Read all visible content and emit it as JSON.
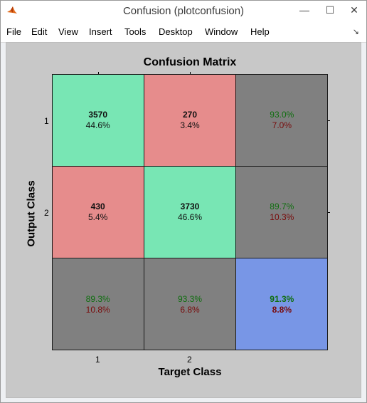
{
  "window": {
    "title": "Confusion (plotconfusion)",
    "icon": "matlab-icon",
    "controls": {
      "minimize": "—",
      "maximize": "☐",
      "close": "✕"
    }
  },
  "menubar": {
    "items": [
      "File",
      "Edit",
      "View",
      "Insert",
      "Tools",
      "Desktop",
      "Window",
      "Help"
    ],
    "dock_icon": "↘"
  },
  "plot": {
    "title": "Confusion Matrix",
    "xlabel": "Target Class",
    "ylabel": "Output Class",
    "xticks": [
      "1",
      "2"
    ],
    "yticks": [
      "1",
      "2"
    ]
  },
  "cells": [
    {
      "line1": "3570",
      "line2": "44.6%",
      "bg": "#78e6b4",
      "c1": "#111111",
      "c2": "#111111",
      "bold1": true,
      "bold2": false
    },
    {
      "line1": "270",
      "line2": "3.4%",
      "bg": "#e68c8c",
      "c1": "#111111",
      "c2": "#111111",
      "bold1": true,
      "bold2": false
    },
    {
      "line1": "93.0%",
      "line2": "7.0%",
      "bg": "#808080",
      "c1": "#0f6e0f",
      "c2": "#780a0a",
      "bold1": false,
      "bold2": false
    },
    {
      "line1": "430",
      "line2": "5.4%",
      "bg": "#e68c8c",
      "c1": "#111111",
      "c2": "#111111",
      "bold1": true,
      "bold2": false
    },
    {
      "line1": "3730",
      "line2": "46.6%",
      "bg": "#78e6b4",
      "c1": "#111111",
      "c2": "#111111",
      "bold1": true,
      "bold2": false
    },
    {
      "line1": "89.7%",
      "line2": "10.3%",
      "bg": "#808080",
      "c1": "#0f6e0f",
      "c2": "#780a0a",
      "bold1": false,
      "bold2": false
    },
    {
      "line1": "89.3%",
      "line2": "10.8%",
      "bg": "#808080",
      "c1": "#0f6e0f",
      "c2": "#780a0a",
      "bold1": false,
      "bold2": false
    },
    {
      "line1": "93.3%",
      "line2": "6.8%",
      "bg": "#808080",
      "c1": "#0f6e0f",
      "c2": "#780a0a",
      "bold1": false,
      "bold2": false
    },
    {
      "line1": "91.3%",
      "line2": "8.8%",
      "bg": "#7896e6",
      "c1": "#0f6e0f",
      "c2": "#780a0a",
      "bold1": true,
      "bold2": true
    }
  ],
  "colors": {
    "correct": "#78e6b4",
    "incorrect": "#e68c8c",
    "summary": "#808080",
    "overall": "#7896e6",
    "figure_bg": "#c8c8c8"
  }
}
